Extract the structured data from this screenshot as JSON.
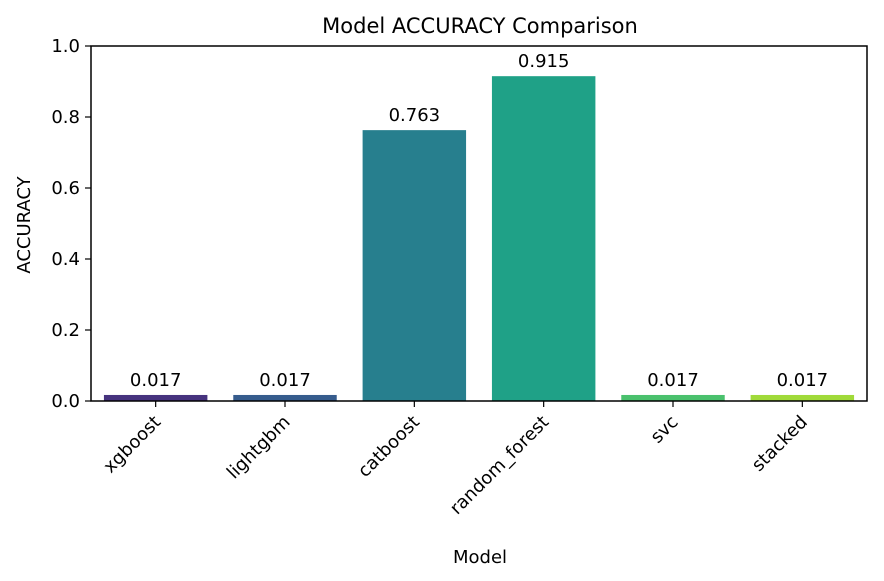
{
  "chart_data": {
    "type": "bar",
    "title": "Model ACCURACY Comparison",
    "xlabel": "Model",
    "ylabel": "ACCURACY",
    "categories": [
      "xgboost",
      "lightgbm",
      "catboost",
      "random_forest",
      "svc",
      "stacked"
    ],
    "values": [
      0.017,
      0.017,
      0.763,
      0.915,
      0.017,
      0.017
    ],
    "value_labels": [
      "0.017",
      "0.017",
      "0.763",
      "0.915",
      "0.017",
      "0.017"
    ],
    "colors": [
      "#46337e",
      "#365c8d",
      "#277f8e",
      "#1fa187",
      "#4ac16d",
      "#a0da39"
    ],
    "ylim": [
      0,
      1.0
    ],
    "yticks": [
      0.0,
      0.2,
      0.4,
      0.6,
      0.8,
      1.0
    ],
    "ytick_labels": [
      "0.0",
      "0.2",
      "0.4",
      "0.6",
      "0.8",
      "1.0"
    ],
    "grid": false,
    "legend": "none"
  }
}
